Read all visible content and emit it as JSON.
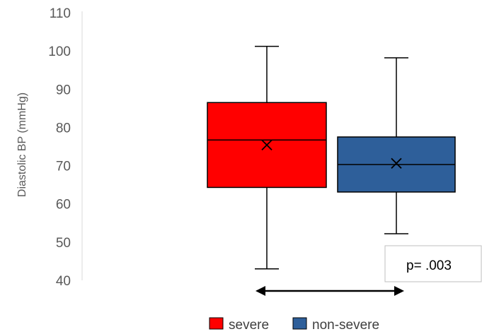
{
  "chart_data": {
    "type": "box",
    "ylabel": "Diastolic BP (mmHg)",
    "ylim": [
      40,
      110
    ],
    "yticks": [
      40,
      50,
      60,
      70,
      80,
      90,
      100,
      110
    ],
    "grid": false,
    "legend_position": "bottom",
    "series": [
      {
        "name": "severe",
        "color": "#ff0000",
        "min": 43,
        "q1": 64.3,
        "median": 76.7,
        "q3": 86.5,
        "max": 101.2,
        "mean": 75.4
      },
      {
        "name": "non-severe",
        "color": "#2e5f9a",
        "min": 52.2,
        "q1": 63.1,
        "median": 70.3,
        "q3": 77.5,
        "max": 98.2,
        "mean": 70.6
      }
    ],
    "annotation": {
      "text": "p= .003"
    }
  }
}
